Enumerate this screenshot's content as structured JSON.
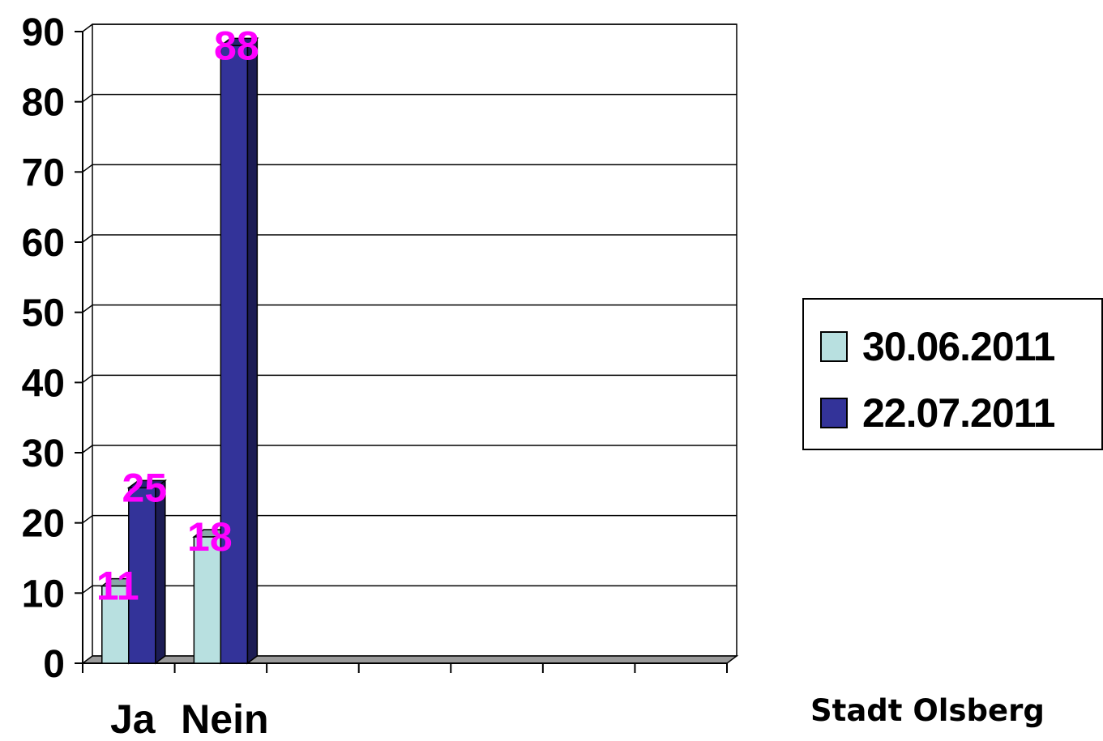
{
  "chart_data": {
    "type": "bar",
    "categories": [
      "Ja",
      "Nein"
    ],
    "series": [
      {
        "name": "30.06.2011",
        "values": [
          11,
          18
        ],
        "color": "#b8e0e0"
      },
      {
        "name": "22.07.2011",
        "values": [
          25,
          88
        ],
        "color": "#333399"
      }
    ],
    "ylim": [
      0,
      90
    ],
    "yticks": [
      0,
      10,
      20,
      30,
      40,
      50,
      60,
      70,
      80,
      90
    ],
    "grid": true,
    "legend_position": "right",
    "data_label_color": "#ff00ff",
    "three_d": true
  },
  "footer": "Stadt Olsberg"
}
